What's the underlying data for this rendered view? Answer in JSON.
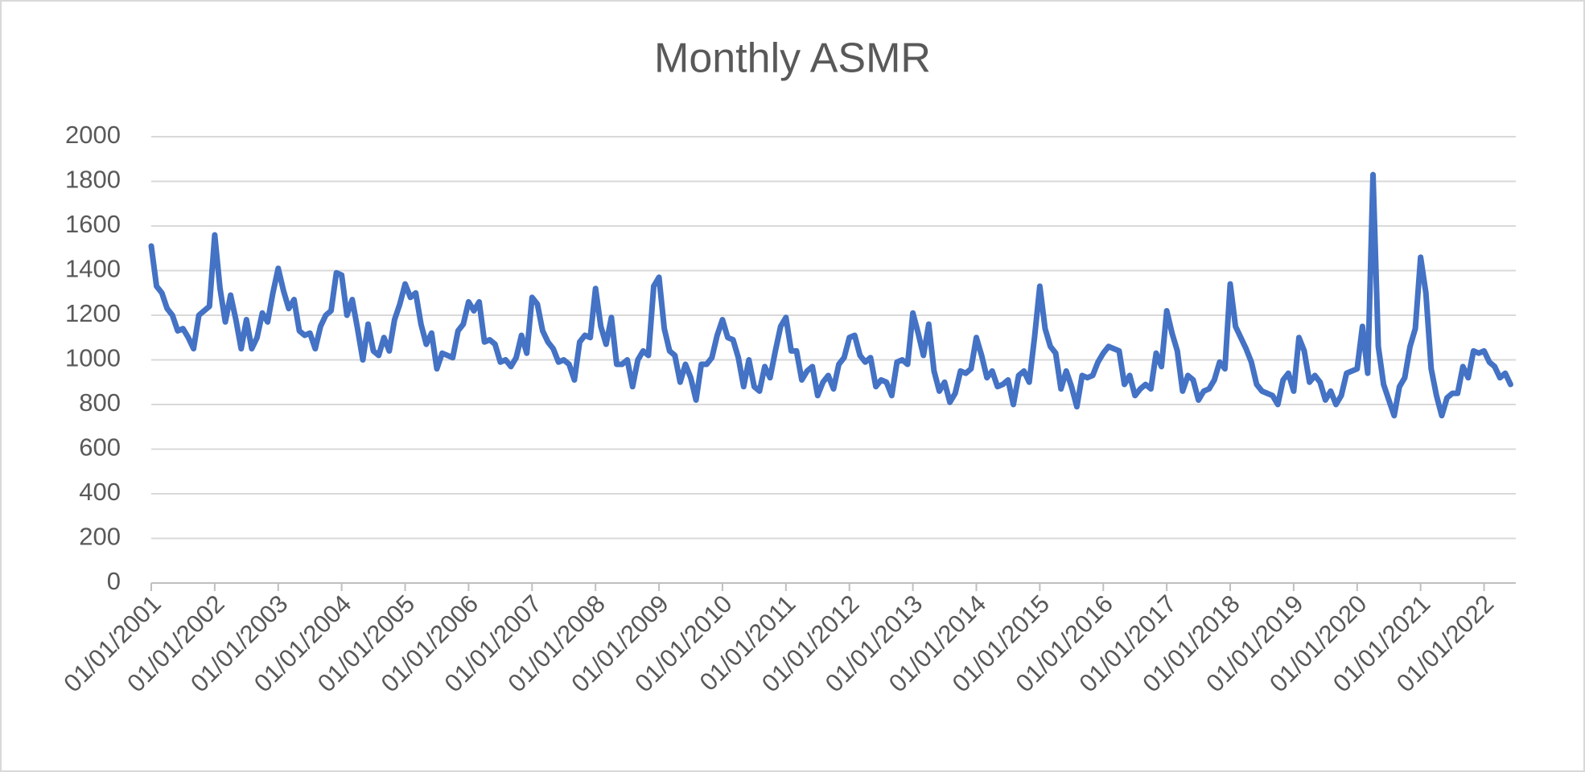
{
  "chart_data": {
    "type": "line",
    "title": "Monthly ASMR",
    "categories": [
      "01/01/2001",
      null,
      null,
      null,
      null,
      null,
      null,
      null,
      null,
      null,
      null,
      null,
      "01/01/2002",
      null,
      null,
      null,
      null,
      null,
      null,
      null,
      null,
      null,
      null,
      null,
      "01/01/2003",
      null,
      null,
      null,
      null,
      null,
      null,
      null,
      null,
      null,
      null,
      null,
      "01/01/2004",
      null,
      null,
      null,
      null,
      null,
      null,
      null,
      null,
      null,
      null,
      null,
      "01/01/2005",
      null,
      null,
      null,
      null,
      null,
      null,
      null,
      null,
      null,
      null,
      null,
      "01/01/2006",
      null,
      null,
      null,
      null,
      null,
      null,
      null,
      null,
      null,
      null,
      null,
      "01/01/2007",
      null,
      null,
      null,
      null,
      null,
      null,
      null,
      null,
      null,
      null,
      null,
      "01/01/2008",
      null,
      null,
      null,
      null,
      null,
      null,
      null,
      null,
      null,
      null,
      null,
      "01/01/2009",
      null,
      null,
      null,
      null,
      null,
      null,
      null,
      null,
      null,
      null,
      null,
      "01/01/2010",
      null,
      null,
      null,
      null,
      null,
      null,
      null,
      null,
      null,
      null,
      null,
      "01/01/2011",
      null,
      null,
      null,
      null,
      null,
      null,
      null,
      null,
      null,
      null,
      null,
      "01/01/2012",
      null,
      null,
      null,
      null,
      null,
      null,
      null,
      null,
      null,
      null,
      null,
      "01/01/2013",
      null,
      null,
      null,
      null,
      null,
      null,
      null,
      null,
      null,
      null,
      null,
      "01/01/2014",
      null,
      null,
      null,
      null,
      null,
      null,
      null,
      null,
      null,
      null,
      null,
      "01/01/2015",
      null,
      null,
      null,
      null,
      null,
      null,
      null,
      null,
      null,
      null,
      null,
      "01/01/2016",
      null,
      null,
      null,
      null,
      null,
      null,
      null,
      null,
      null,
      null,
      null,
      "01/01/2017",
      null,
      null,
      null,
      null,
      null,
      null,
      null,
      null,
      null,
      null,
      null,
      "01/01/2018",
      null,
      null,
      null,
      null,
      null,
      null,
      null,
      null,
      null,
      null,
      null,
      "01/01/2019",
      null,
      null,
      null,
      null,
      null,
      null,
      null,
      null,
      null,
      null,
      null,
      "01/01/2020",
      null,
      null,
      null,
      null,
      null,
      null,
      null,
      null,
      null,
      null,
      null,
      "01/01/2021",
      null,
      null,
      null,
      null,
      null,
      null,
      null,
      null,
      null,
      null,
      null,
      "01/01/2022",
      null,
      null,
      null,
      null,
      null
    ],
    "values": [
      1510,
      1330,
      1300,
      1230,
      1200,
      1130,
      1140,
      1100,
      1050,
      1200,
      1220,
      1240,
      1560,
      1320,
      1170,
      1290,
      1180,
      1050,
      1180,
      1050,
      1100,
      1210,
      1170,
      1300,
      1410,
      1310,
      1230,
      1270,
      1130,
      1110,
      1120,
      1050,
      1150,
      1200,
      1220,
      1390,
      1380,
      1200,
      1270,
      1140,
      1000,
      1160,
      1040,
      1020,
      1100,
      1040,
      1180,
      1250,
      1340,
      1280,
      1300,
      1160,
      1070,
      1120,
      960,
      1030,
      1020,
      1010,
      1130,
      1160,
      1260,
      1220,
      1260,
      1080,
      1090,
      1070,
      990,
      1000,
      970,
      1010,
      1110,
      1030,
      1280,
      1250,
      1130,
      1080,
      1050,
      990,
      1000,
      980,
      910,
      1080,
      1110,
      1100,
      1320,
      1150,
      1070,
      1190,
      980,
      980,
      1000,
      880,
      1000,
      1040,
      1020,
      1330,
      1370,
      1140,
      1040,
      1020,
      900,
      980,
      920,
      820,
      980,
      980,
      1010,
      1110,
      1180,
      1100,
      1090,
      1010,
      880,
      1000,
      880,
      860,
      970,
      920,
      1040,
      1150,
      1190,
      1040,
      1040,
      910,
      950,
      970,
      840,
      900,
      930,
      870,
      980,
      1010,
      1100,
      1110,
      1020,
      990,
      1010,
      880,
      910,
      900,
      840,
      990,
      1000,
      980,
      1210,
      1120,
      1020,
      1160,
      950,
      860,
      900,
      810,
      850,
      950,
      940,
      960,
      1100,
      1020,
      920,
      950,
      880,
      890,
      910,
      800,
      930,
      950,
      900,
      1100,
      1330,
      1140,
      1060,
      1030,
      870,
      950,
      880,
      790,
      930,
      920,
      930,
      990,
      1030,
      1060,
      1050,
      1040,
      890,
      930,
      840,
      870,
      890,
      870,
      1030,
      970,
      1220,
      1120,
      1040,
      860,
      930,
      910,
      820,
      860,
      870,
      910,
      990,
      960,
      1340,
      1150,
      1100,
      1050,
      990,
      890,
      860,
      850,
      840,
      800,
      910,
      940,
      860,
      1100,
      1040,
      900,
      930,
      900,
      820,
      860,
      800,
      840,
      940,
      950,
      960,
      1150,
      940,
      1830,
      1060,
      890,
      820,
      750,
      880,
      920,
      1060,
      1140,
      1460,
      1300,
      960,
      840,
      750,
      830,
      850,
      850,
      970,
      920,
      1040,
      1030,
      1040,
      990,
      970,
      920,
      940,
      890
    ],
    "color": "#4472c4",
    "ylim": [
      0,
      2000
    ],
    "yticks": [
      0,
      200,
      400,
      600,
      800,
      1000,
      1200,
      1400,
      1600,
      1800,
      2000
    ],
    "grid": true
  }
}
